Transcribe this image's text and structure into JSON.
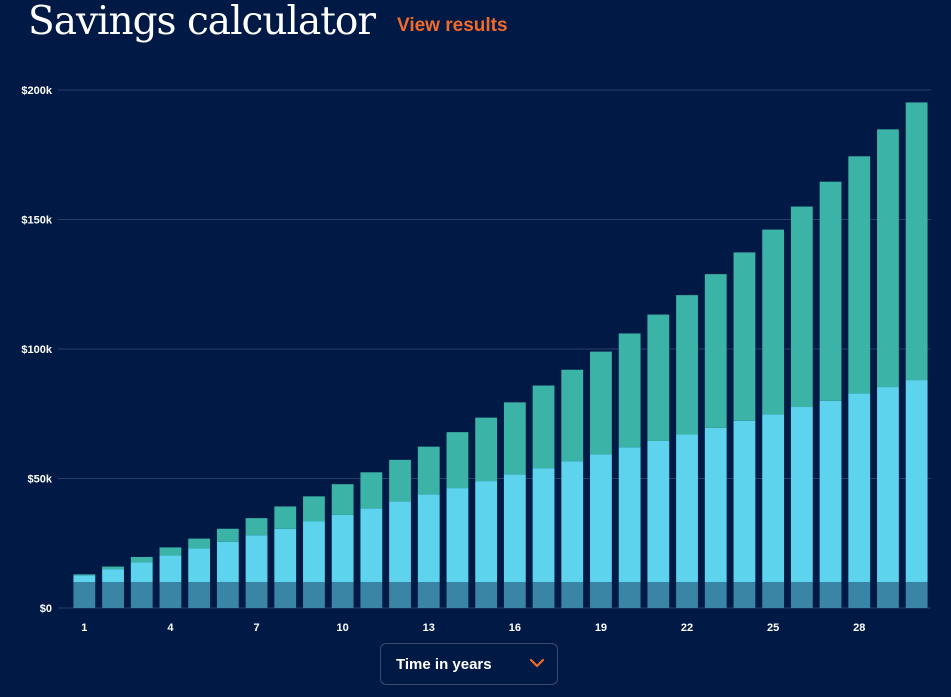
{
  "header": {
    "title": "Savings calculator",
    "link_label": "View results"
  },
  "controls": {
    "time_dropdown_label": "Time in years",
    "chevron_icon": "chevron-down-icon"
  },
  "colors": {
    "background": "#001a45",
    "accent": "#f26a2a",
    "initial_deposit": "#3a84a5",
    "contributions": "#5dd3ee",
    "interest": "#3cb3a7"
  },
  "chart_data": {
    "type": "bar",
    "stacked": true,
    "x": [
      1,
      2,
      3,
      4,
      5,
      6,
      7,
      8,
      9,
      10,
      11,
      12,
      13,
      14,
      15,
      16,
      17,
      18,
      19,
      20,
      21,
      22,
      23,
      24,
      25,
      26,
      27,
      28,
      29,
      30
    ],
    "xticks": [
      "1",
      "4",
      "7",
      "10",
      "13",
      "16",
      "19",
      "22",
      "25",
      "28"
    ],
    "yticks": [
      "$0",
      "$50k",
      "$100k",
      "$150k",
      "$200k"
    ],
    "ylim": [
      0,
      200000
    ],
    "grid": true,
    "series": [
      {
        "values": [
          10000,
          10000,
          10000,
          10000,
          10000,
          10000,
          10000,
          10000,
          10000,
          10000,
          10000,
          10000,
          10000,
          10000,
          10000,
          10000,
          10000,
          10000,
          10000,
          10000,
          10000,
          10000,
          10000,
          10000,
          10000,
          10000,
          10000,
          10000,
          10000,
          10000
        ]
      },
      {
        "values": [
          2600,
          5000,
          7700,
          10300,
          13000,
          15600,
          18100,
          20600,
          23400,
          26000,
          28500,
          31200,
          33800,
          36300,
          39000,
          41600,
          44000,
          46700,
          49300,
          52000,
          54500,
          57000,
          59600,
          62300,
          64800,
          67600,
          70000,
          72800,
          75300,
          78000
        ]
      },
      {
        "values": [
          400,
          1000,
          2000,
          3100,
          3800,
          5000,
          6600,
          8600,
          9700,
          11800,
          13900,
          16000,
          18500,
          21600,
          24500,
          27800,
          31900,
          35300,
          39700,
          44000,
          48800,
          53800,
          59300,
          65000,
          71300,
          77400,
          84600,
          91600,
          99500,
          107200
        ]
      }
    ]
  }
}
